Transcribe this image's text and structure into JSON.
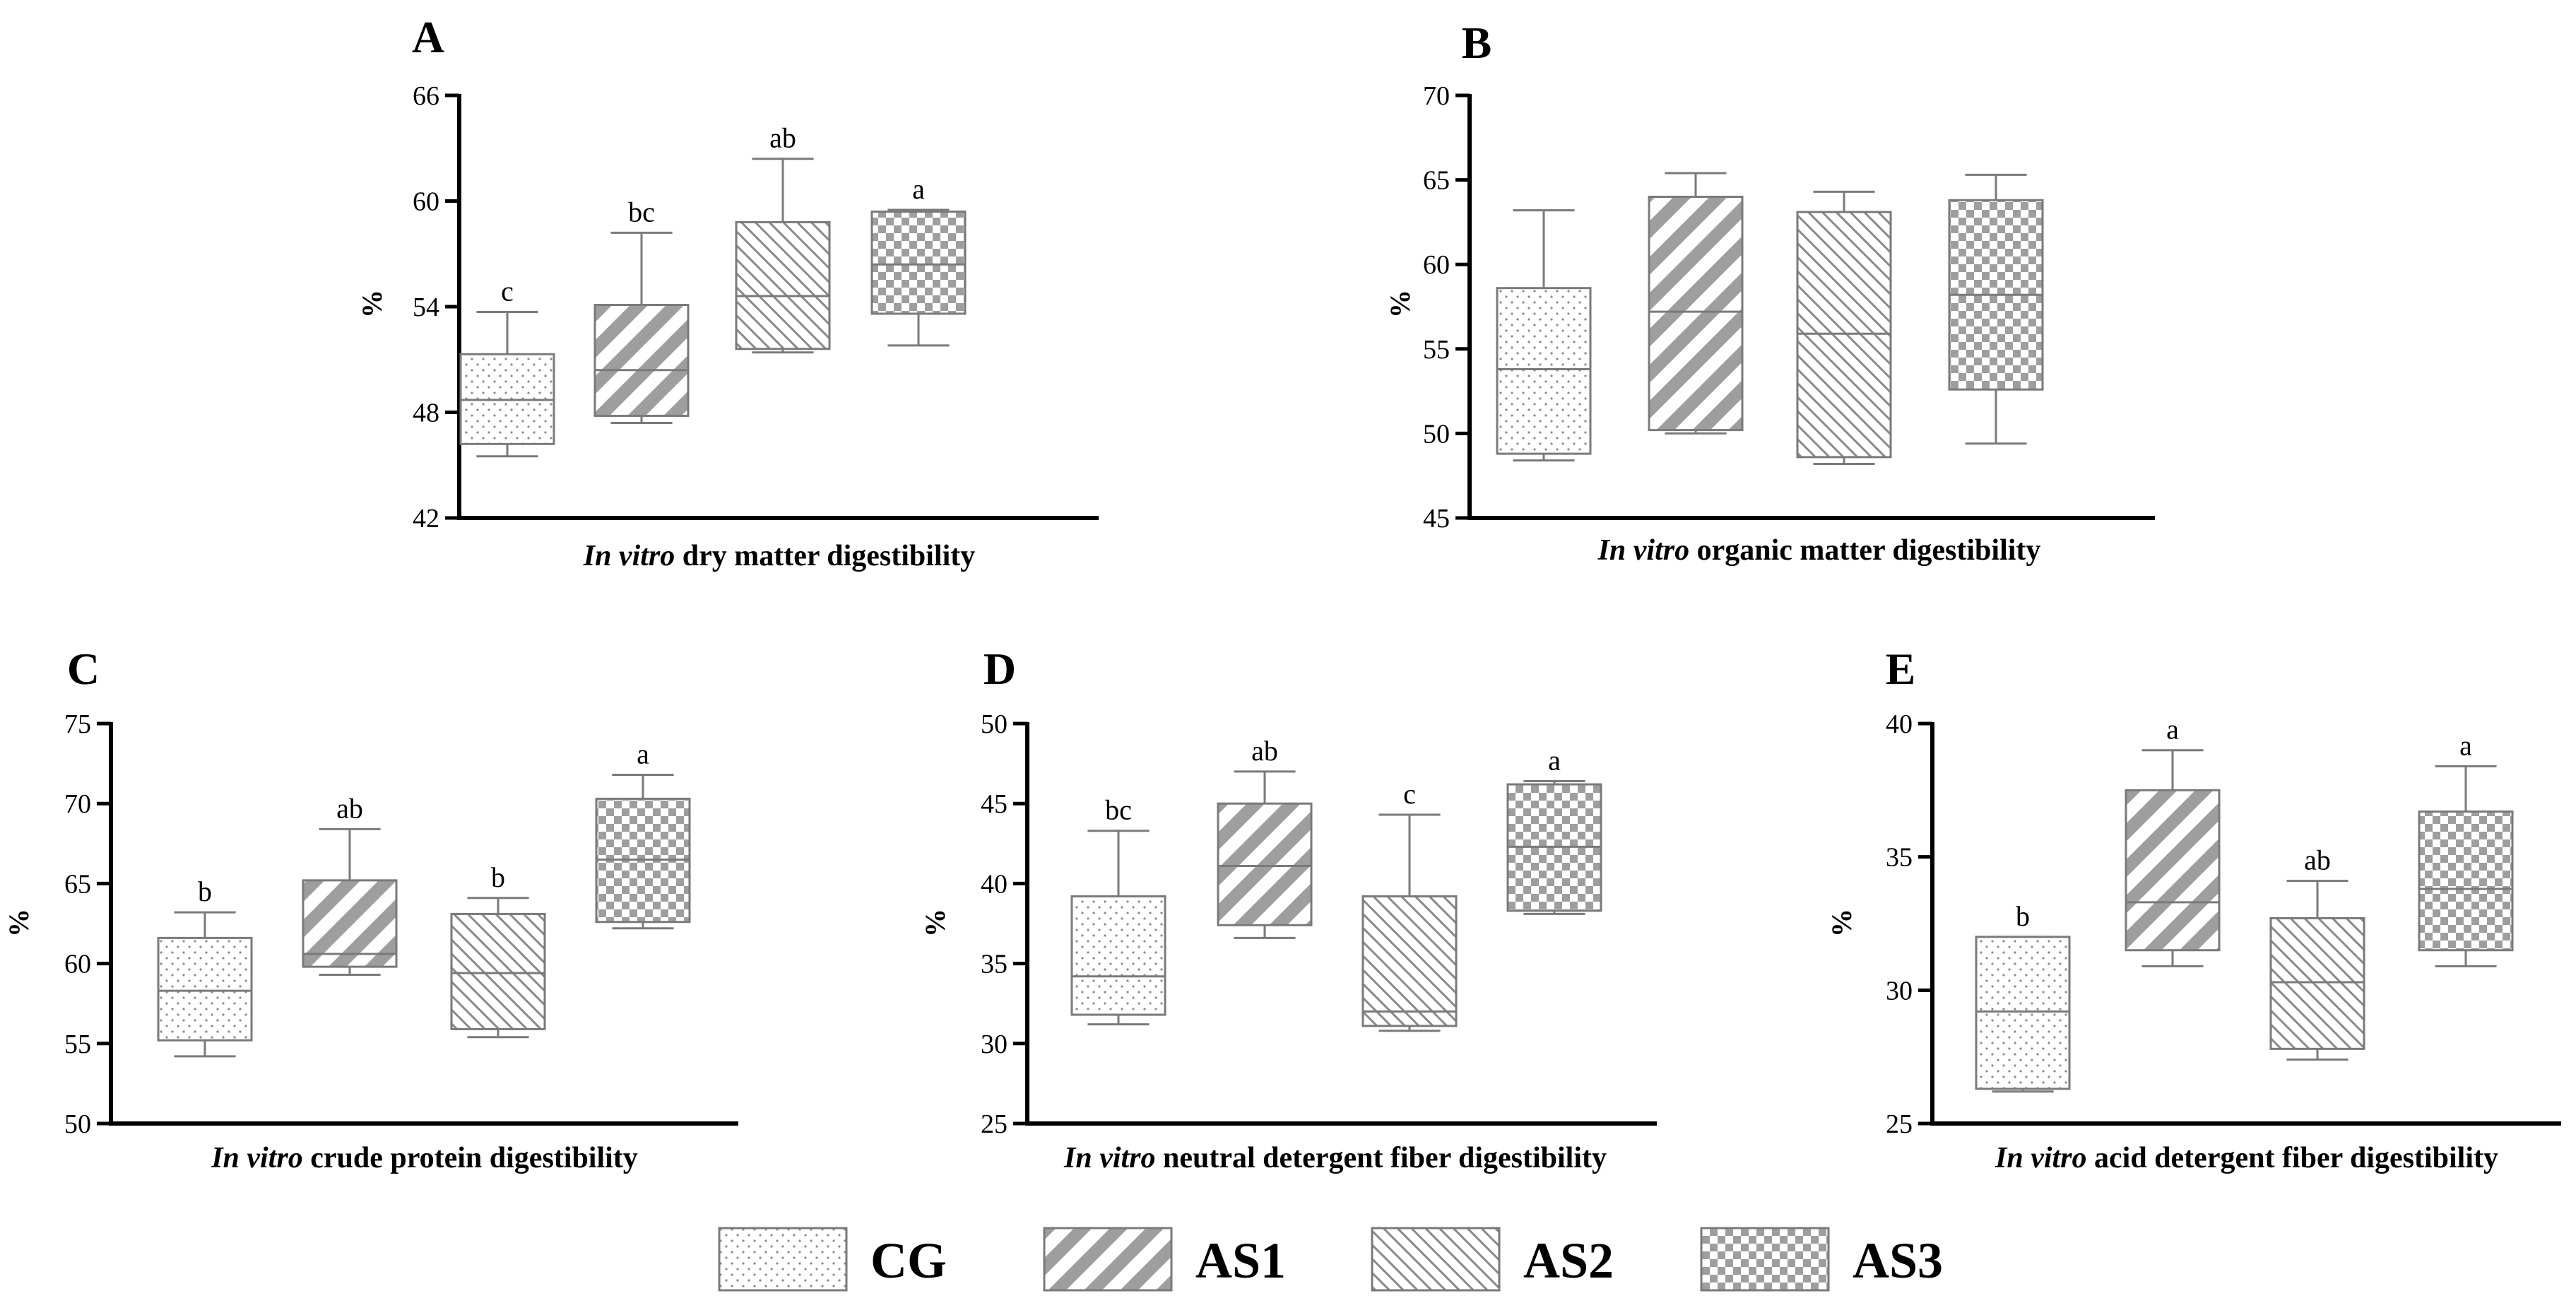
{
  "legend": [
    {
      "key": "CG",
      "label": "CG",
      "pattern": "dots"
    },
    {
      "key": "AS1",
      "label": "AS1",
      "pattern": "wide-diagonal"
    },
    {
      "key": "AS2",
      "label": "AS2",
      "pattern": "narrow-diagonal"
    },
    {
      "key": "AS3",
      "label": "AS3",
      "pattern": "checker"
    }
  ],
  "colors": {
    "stroke": "#7a7a7a",
    "fill_dark": "#9e9e9e",
    "axis": "#000000",
    "background": "#ffffff"
  },
  "chart_data": [
    {
      "id": "A",
      "type": "box",
      "title": "A",
      "xlabel_italic": "In vitro",
      "xlabel_rest": " dry matter digestibility",
      "ylabel": "%",
      "ylim": [
        42,
        66
      ],
      "yticks": [
        42,
        48,
        54,
        60,
        66
      ],
      "groups": [
        "CG",
        "AS1",
        "AS2",
        "AS3"
      ],
      "boxes": [
        {
          "group": "CG",
          "min": 45.5,
          "q1": 46.2,
          "median": 48.7,
          "q3": 51.3,
          "max": 53.7,
          "label": "c"
        },
        {
          "group": "AS1",
          "min": 47.4,
          "q1": 47.8,
          "median": 50.4,
          "q3": 54.1,
          "max": 58.2,
          "label": "bc"
        },
        {
          "group": "AS2",
          "min": 51.4,
          "q1": 51.6,
          "median": 54.6,
          "q3": 58.8,
          "max": 62.4,
          "label": "ab"
        },
        {
          "group": "AS3",
          "min": 51.8,
          "q1": 53.6,
          "median": 56.4,
          "q3": 59.4,
          "max": 59.5,
          "label": "a"
        }
      ]
    },
    {
      "id": "B",
      "type": "box",
      "title": "B",
      "xlabel_italic": "In vitro",
      "xlabel_rest": " organic matter digestibility",
      "ylabel": "%",
      "ylim": [
        45,
        70
      ],
      "yticks": [
        45,
        50,
        55,
        60,
        65,
        70
      ],
      "groups": [
        "CG",
        "AS1",
        "AS2",
        "AS3"
      ],
      "boxes": [
        {
          "group": "CG",
          "min": 48.4,
          "q1": 48.8,
          "median": 53.8,
          "q3": 58.6,
          "max": 63.2,
          "label": ""
        },
        {
          "group": "AS1",
          "min": 50.0,
          "q1": 50.2,
          "median": 57.2,
          "q3": 64.0,
          "max": 65.4,
          "label": ""
        },
        {
          "group": "AS2",
          "min": 48.2,
          "q1": 48.6,
          "median": 55.9,
          "q3": 63.1,
          "max": 64.3,
          "label": ""
        },
        {
          "group": "AS3",
          "min": 49.4,
          "q1": 52.6,
          "median": 58.2,
          "q3": 63.8,
          "max": 65.3,
          "label": ""
        }
      ]
    },
    {
      "id": "C",
      "type": "box",
      "title": "C",
      "xlabel_italic": "In vitro",
      "xlabel_rest": " crude protein digestibility",
      "ylabel": "%",
      "ylim": [
        50,
        75
      ],
      "yticks": [
        50,
        55,
        60,
        65,
        70,
        75
      ],
      "groups": [
        "CG",
        "AS1",
        "AS2",
        "AS3"
      ],
      "boxes": [
        {
          "group": "CG",
          "min": 54.2,
          "q1": 55.2,
          "median": 58.3,
          "q3": 61.6,
          "max": 63.2,
          "label": "b"
        },
        {
          "group": "AS1",
          "min": 59.3,
          "q1": 59.8,
          "median": 60.6,
          "q3": 65.2,
          "max": 68.4,
          "label": "ab"
        },
        {
          "group": "AS2",
          "min": 55.4,
          "q1": 55.9,
          "median": 59.4,
          "q3": 63.1,
          "max": 64.1,
          "label": "b"
        },
        {
          "group": "AS3",
          "min": 62.2,
          "q1": 62.6,
          "median": 66.5,
          "q3": 70.3,
          "max": 71.8,
          "label": "a"
        }
      ]
    },
    {
      "id": "D",
      "type": "box",
      "title": "D",
      "xlabel_italic": "In vitro",
      "xlabel_rest": " neutral detergent fiber digestibility",
      "ylabel": "%",
      "ylim": [
        25,
        50
      ],
      "yticks": [
        25,
        30,
        35,
        40,
        45,
        50
      ],
      "groups": [
        "CG",
        "AS1",
        "AS2",
        "AS3"
      ],
      "boxes": [
        {
          "group": "CG",
          "min": 31.2,
          "q1": 31.8,
          "median": 34.2,
          "q3": 39.2,
          "max": 43.3,
          "label": "bc"
        },
        {
          "group": "AS1",
          "min": 36.6,
          "q1": 37.4,
          "median": 41.1,
          "q3": 45.0,
          "max": 47.0,
          "label": "ab"
        },
        {
          "group": "AS2",
          "min": 30.8,
          "q1": 31.1,
          "median": 32.0,
          "q3": 39.2,
          "max": 44.3,
          "label": "c"
        },
        {
          "group": "AS3",
          "min": 38.1,
          "q1": 38.3,
          "median": 42.3,
          "q3": 46.2,
          "max": 46.4,
          "label": "a"
        }
      ]
    },
    {
      "id": "E",
      "type": "box",
      "title": "E",
      "xlabel_italic": "In vitro",
      "xlabel_rest": " acid detergent fiber digestibility",
      "ylabel": "%",
      "ylim": [
        25,
        40
      ],
      "yticks": [
        25,
        30,
        35,
        40
      ],
      "groups": [
        "CG",
        "AS1",
        "AS2",
        "AS3"
      ],
      "boxes": [
        {
          "group": "CG",
          "min": 26.2,
          "q1": 26.3,
          "median": 29.2,
          "q3": 32.0,
          "max": 32.0,
          "label": "b"
        },
        {
          "group": "AS1",
          "min": 30.9,
          "q1": 31.5,
          "median": 33.3,
          "q3": 37.5,
          "max": 39.0,
          "label": "a"
        },
        {
          "group": "AS2",
          "min": 27.4,
          "q1": 27.8,
          "median": 30.3,
          "q3": 32.7,
          "max": 34.1,
          "label": "ab"
        },
        {
          "group": "AS3",
          "min": 30.9,
          "q1": 31.5,
          "median": 33.8,
          "q3": 36.7,
          "max": 38.4,
          "label": "a"
        }
      ]
    }
  ]
}
